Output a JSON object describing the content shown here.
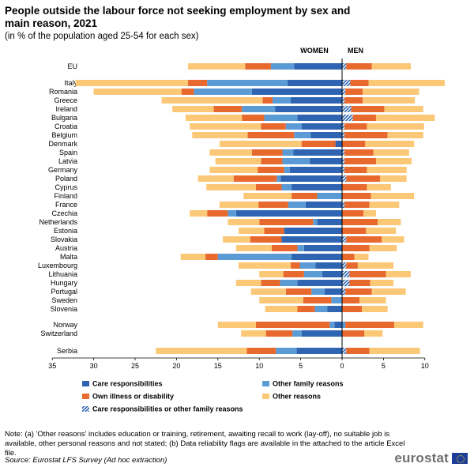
{
  "title": "People outside the labour force not seeking employment by sex and main reason, 2021",
  "subtitle": "(in % of the population aged 25-54 for each sex)",
  "note": "Note: (a) 'Other reasons' includes education or training, retirement, awaiting recall to work (lay-off), no suitable job is available, other personal reasons and not stated; (b) Data reliability flags are available in the attached to the article Excel file.",
  "source": "Source: Eurostat LFS Survey (Ad hoc extraction)",
  "logo_text": "eurostat",
  "colors": {
    "care": "#2e64b1",
    "other_family": "#5b9bd5",
    "illness": "#e8692d",
    "other": "#fbc877",
    "combined": "#2e64b1"
  },
  "chart_data": {
    "type": "bar",
    "orientation": "horizontal-diverging-stacked",
    "panels": [
      "WOMEN",
      "MEN"
    ],
    "xlim": [
      -35,
      10
    ],
    "xticks": [
      "35",
      "30",
      "25",
      "20",
      "15",
      "10",
      "5",
      "0",
      "5",
      "10"
    ],
    "legend": [
      {
        "key": "care",
        "label": "Care responsibilities"
      },
      {
        "key": "other_family",
        "label": "Other family reasons"
      },
      {
        "key": "illness",
        "label": "Own illness or disability"
      },
      {
        "key": "other",
        "label": "Other reasons"
      },
      {
        "key": "combined",
        "label": "Care responsibilities or other family reasons"
      }
    ],
    "categories": [
      "EU",
      "Italy",
      "Romania",
      "Greece",
      "Ireland",
      "Bulgaria",
      "Croatia",
      "Belgium",
      "Denmark",
      "Spain",
      "Latvia",
      "Germany",
      "Poland",
      "Cyprus",
      "Finland",
      "France",
      "Czechia",
      "Netherlands",
      "Estonia",
      "Slovakia",
      "Austria",
      "Malta",
      "Luxembourg",
      "Lithuania",
      "Hungary",
      "Portugal",
      "Sweden",
      "Slovenia",
      "Norway",
      "Switzerland",
      "Serbia"
    ],
    "women": {
      "care": [
        5.8,
        6.6,
        10.9,
        6.2,
        8.1,
        5.4,
        4.9,
        3.8,
        0.8,
        5.9,
        3.9,
        6.3,
        7.4,
        6.1,
        0,
        4.4,
        12.8,
        3.0,
        7.0,
        7.3,
        4.6,
        6.1,
        3.2,
        2.4,
        5.4,
        2.1,
        0,
        1.8,
        0.9,
        4.9,
        5.5
      ],
      "other_family": [
        2.8,
        9.7,
        7.0,
        2.2,
        4.0,
        4.0,
        1.9,
        2.0,
        0,
        1.3,
        3.3,
        0.7,
        0.5,
        1.2,
        3.0,
        2.1,
        1.0,
        0.5,
        0,
        0,
        0.8,
        8.9,
        1.9,
        2.2,
        2.1,
        1.6,
        1.3,
        1.5,
        0.6,
        1.1,
        2.5
      ],
      "illness": [
        3.1,
        2.3,
        1.5,
        1.2,
        3.4,
        2.7,
        3.0,
        5.6,
        4.1,
        3.7,
        2.6,
        3.2,
        5.2,
        3.1,
        3.1,
        3.6,
        2.5,
        6.5,
        2.4,
        3.8,
        3.1,
        1.5,
        1.1,
        2.5,
        2.3,
        3.1,
        3.4,
        2.1,
        8.9,
        3.2,
        3.5
      ],
      "other": [
        6.9,
        13.6,
        10.6,
        12.2,
        5.0,
        6.8,
        8.6,
        6.7,
        9.9,
        5.1,
        5.5,
        5.8,
        4.3,
        6.0,
        5.8,
        4.7,
        2.1,
        3.8,
        3.1,
        3.3,
        4.3,
        3.0,
        6.3,
        2.9,
        3.0,
        4.2,
        5.3,
        3.9,
        4.6,
        3.0,
        11.0
      ]
    },
    "men": {
      "combined": [
        0.5,
        1.0,
        0.4,
        0.3,
        1.1,
        1.3,
        0.3,
        0.3,
        0,
        0.3,
        0.3,
        0.3,
        0.5,
        0,
        0,
        0.3,
        0,
        0,
        0,
        0.5,
        0,
        0,
        0.5,
        0.9,
        0.9,
        0.4,
        0,
        0,
        0,
        0,
        0.5
      ],
      "other_family": [
        0,
        0,
        0,
        0,
        0,
        0,
        0,
        0,
        0,
        0,
        0,
        0,
        0,
        0,
        0,
        0,
        0,
        0,
        0,
        0,
        0,
        0,
        0,
        0,
        0,
        0,
        0,
        0,
        0.4,
        0,
        0
      ],
      "illness": [
        3.1,
        2.2,
        2.1,
        2.2,
        4.0,
        2.8,
        2.7,
        5.2,
        2.8,
        3.5,
        3.8,
        2.7,
        4.1,
        3.0,
        3.5,
        3.0,
        2.6,
        4.3,
        2.9,
        4.3,
        3.3,
        1.5,
        1.4,
        4.4,
        2.5,
        3.2,
        2.1,
        2.4,
        5.9,
        2.7,
        2.8
      ],
      "other": [
        4.7,
        9.2,
        6.8,
        6.3,
        4.7,
        7.1,
        6.9,
        4.3,
        5.9,
        4.3,
        4.3,
        4.8,
        3.2,
        2.9,
        5.2,
        3.6,
        1.5,
        2.8,
        3.6,
        2.7,
        3.3,
        1.7,
        4.3,
        3.0,
        2.8,
        4.1,
        3.2,
        3.1,
        3.5,
        2.2,
        6.1
      ]
    }
  }
}
